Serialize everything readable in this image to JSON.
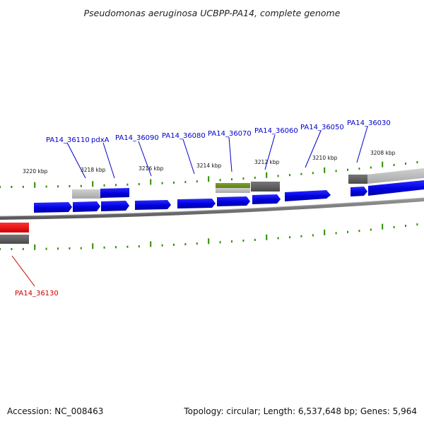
{
  "title": "Pseudomonas aeruginosa UCBPP-PA14, complete genome",
  "footer": {
    "accession": "Accession: NC_008463",
    "summary": "Topology: circular; Length: 6,537,648 bp; Genes: 5,964"
  },
  "colors": {
    "gene_label": "#0000cc",
    "highlight_label": "#cc0000",
    "gene_fill": "#0000ee",
    "highlight_fill": "#ee0000",
    "backbone": "#777777",
    "tick": "#2e8b00",
    "olive": "#6b8e23",
    "grey_dark": "#5a5a5a",
    "grey_light": "#bbbbbb"
  },
  "kbp_labels": [
    "3220 kbp",
    "3218 kbp",
    "3216 kbp",
    "3214 kbp",
    "3212 kbp",
    "3210 kbp",
    "3208 kbp"
  ],
  "genes": [
    {
      "id": "PA14_36110",
      "color": "blue"
    },
    {
      "id": "pdxA",
      "color": "blue"
    },
    {
      "id": "PA14_36090",
      "color": "blue"
    },
    {
      "id": "PA14_36080",
      "color": "blue"
    },
    {
      "id": "PA14_36070",
      "color": "blue"
    },
    {
      "id": "PA14_36060",
      "color": "blue"
    },
    {
      "id": "PA14_36050",
      "color": "blue"
    },
    {
      "id": "PA14_36030",
      "color": "blue"
    },
    {
      "id": "PA14_36130",
      "color": "red"
    }
  ]
}
